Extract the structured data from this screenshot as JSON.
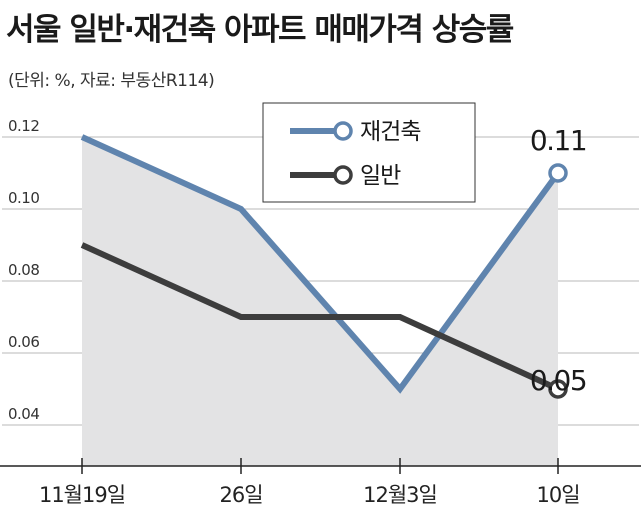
{
  "header": {
    "title": "서울 일반·재건축 아파트 매매가격 상승률",
    "subtitle": "(단위: %, 자료: 부동산R114)"
  },
  "colors": {
    "reconstruction": "#5f84ae",
    "general": "#3d3d3d",
    "area_fill": "#e3e3e4",
    "axis": "#222222",
    "grid": "#b9b9b9"
  },
  "chart_data": {
    "type": "line",
    "categories": [
      "11월19일",
      "26일",
      "12월3일",
      "10일"
    ],
    "yticks": [
      "0.12",
      "0.10",
      "0.08",
      "0.06",
      "0.04"
    ],
    "ylim": [
      0.04,
      0.12
    ],
    "grid": true,
    "legend": {
      "position": "top-right",
      "items": [
        "재건축",
        "일반"
      ]
    },
    "series": [
      {
        "name": "재건축",
        "values": [
          0.12,
          0.1,
          0.05,
          0.11
        ],
        "end_label": "0.11"
      },
      {
        "name": "일반",
        "values": [
          0.09,
          0.07,
          0.07,
          0.05
        ],
        "end_label": "0.05"
      }
    ]
  }
}
